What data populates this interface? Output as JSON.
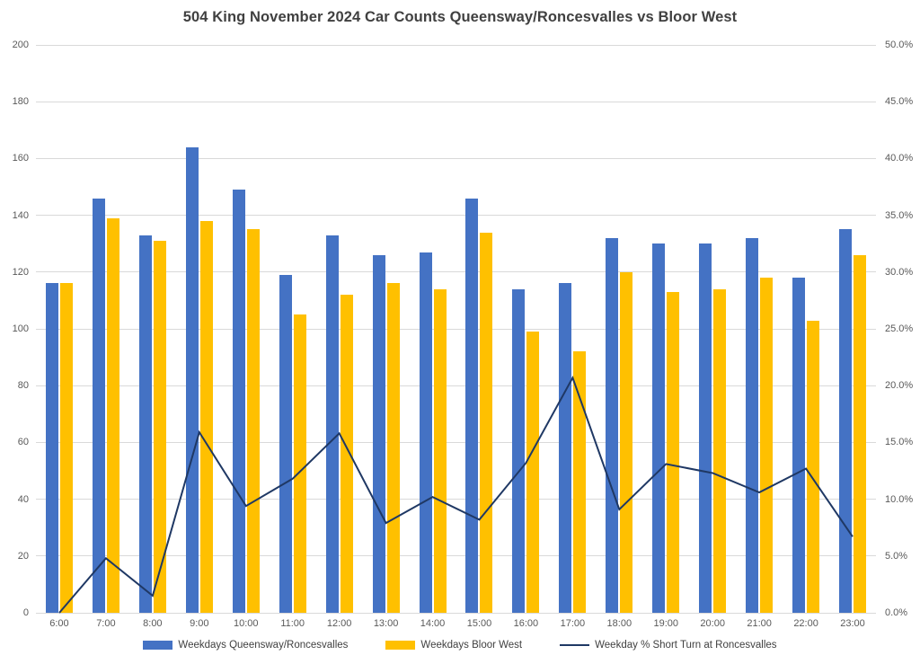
{
  "title": "504 King November 2024 Car Counts Queensway/Roncesvalles vs Bloor West",
  "colors": {
    "bar_queensway": "#4472C4",
    "bar_bloor": "#FFC000",
    "line_shortturn": "#1F3864",
    "gridline": "#D9D9D9",
    "axis_text": "#595959",
    "title_text": "#404040"
  },
  "chart_data": {
    "type": "bar",
    "subtype": "grouped-bars-with-line-overlay",
    "title": "504 King November 2024 Car Counts Queensway/Roncesvalles vs Bloor West",
    "categories": [
      "6:00",
      "7:00",
      "8:00",
      "9:00",
      "10:00",
      "11:00",
      "12:00",
      "13:00",
      "14:00",
      "15:00",
      "16:00",
      "17:00",
      "18:00",
      "19:00",
      "20:00",
      "21:00",
      "22:00",
      "23:00"
    ],
    "series": [
      {
        "name": "Weekdays Queensway/Roncesvalles",
        "type": "bar",
        "axis": "left",
        "color": "#4472C4",
        "values": [
          116,
          146,
          133,
          164,
          149,
          119,
          133,
          126,
          127,
          146,
          114,
          116,
          132,
          130,
          130,
          132,
          118,
          135
        ]
      },
      {
        "name": "Weekdays Bloor West",
        "type": "bar",
        "axis": "left",
        "color": "#FFC000",
        "values": [
          116,
          139,
          131,
          138,
          135,
          105,
          112,
          116,
          114,
          134,
          99,
          92,
          120,
          113,
          114,
          118,
          103,
          126
        ]
      },
      {
        "name": "Weekday % Short Turn at Roncesvalles",
        "type": "line",
        "axis": "right",
        "color": "#1F3864",
        "values_percent": [
          0.0,
          4.8,
          1.5,
          15.9,
          9.4,
          11.8,
          15.8,
          7.9,
          10.2,
          8.2,
          13.2,
          20.7,
          9.1,
          13.1,
          12.3,
          10.6,
          12.7,
          6.7
        ]
      }
    ],
    "left_axis": {
      "min": 0,
      "max": 200,
      "step": 20,
      "tick_labels": [
        "0",
        "20",
        "40",
        "60",
        "80",
        "100",
        "120",
        "140",
        "160",
        "180",
        "200"
      ]
    },
    "right_axis": {
      "min": 0,
      "max": 50,
      "step": 5,
      "tick_labels": [
        "0.0%",
        "5.0%",
        "10.0%",
        "15.0%",
        "20.0%",
        "25.0%",
        "30.0%",
        "35.0%",
        "40.0%",
        "45.0%",
        "50.0%"
      ]
    },
    "grid": "horizontal-only",
    "legend_position": "bottom"
  }
}
